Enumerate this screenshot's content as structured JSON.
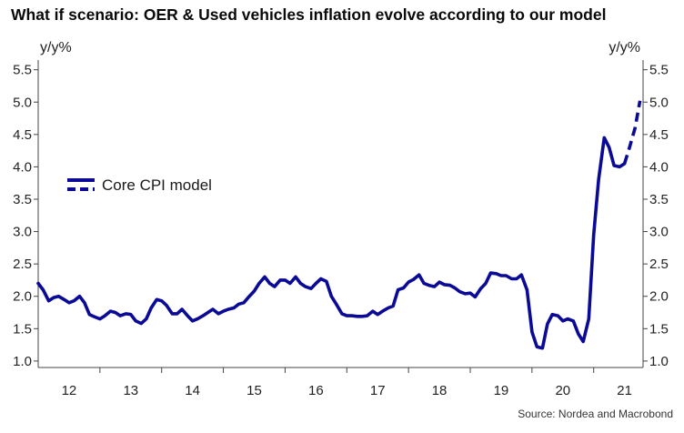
{
  "chart_data": {
    "type": "line",
    "title": "What if scenario: OER & Used vehicles inflation evolve according to our model",
    "ylabel_left": "y/y%",
    "ylabel_right": "y/y%",
    "ylim": [
      0.9,
      5.65
    ],
    "yticks": [
      1.0,
      1.5,
      2.0,
      2.5,
      3.0,
      3.5,
      4.0,
      4.5,
      5.0,
      5.5
    ],
    "ytick_labels": [
      "1.0",
      "1.5",
      "2.0",
      "2.5",
      "3.0",
      "3.5",
      "4.0",
      "4.5",
      "5.0",
      "5.5"
    ],
    "xlim": [
      2012.0,
      2021.8
    ],
    "year_labels": [
      "12",
      "13",
      "14",
      "15",
      "16",
      "17",
      "18",
      "19",
      "20",
      "21"
    ],
    "grid": false,
    "legend_position": "left",
    "source": "Source: Nordea and Macrobond",
    "series": [
      {
        "name": "Core CPI model",
        "color": "#0a0a96",
        "style": "solid",
        "x": [
          2012.0,
          2012.08,
          2012.17,
          2012.25,
          2012.33,
          2012.42,
          2012.5,
          2012.58,
          2012.67,
          2012.75,
          2012.83,
          2012.92,
          2013.0,
          2013.08,
          2013.17,
          2013.25,
          2013.33,
          2013.42,
          2013.5,
          2013.58,
          2013.67,
          2013.75,
          2013.83,
          2013.92,
          2014.0,
          2014.08,
          2014.17,
          2014.25,
          2014.33,
          2014.42,
          2014.5,
          2014.58,
          2014.67,
          2014.75,
          2014.83,
          2014.92,
          2015.0,
          2015.08,
          2015.17,
          2015.25,
          2015.33,
          2015.42,
          2015.5,
          2015.58,
          2015.67,
          2015.75,
          2015.83,
          2015.92,
          2016.0,
          2016.08,
          2016.17,
          2016.25,
          2016.33,
          2016.42,
          2016.5,
          2016.58,
          2016.67,
          2016.75,
          2016.83,
          2016.92,
          2017.0,
          2017.08,
          2017.17,
          2017.25,
          2017.33,
          2017.42,
          2017.5,
          2017.58,
          2017.67,
          2017.75,
          2017.83,
          2017.92,
          2018.0,
          2018.08,
          2018.17,
          2018.25,
          2018.33,
          2018.42,
          2018.5,
          2018.58,
          2018.67,
          2018.75,
          2018.83,
          2018.92,
          2019.0,
          2019.08,
          2019.17,
          2019.25,
          2019.33,
          2019.42,
          2019.5,
          2019.58,
          2019.67,
          2019.75,
          2019.83,
          2019.92,
          2020.0,
          2020.08,
          2020.17,
          2020.25,
          2020.33,
          2020.42,
          2020.5,
          2020.58,
          2020.67,
          2020.75,
          2020.83,
          2020.92,
          2021.0,
          2021.08,
          2021.17,
          2021.25,
          2021.33,
          2021.42,
          2021.5
        ],
        "y": [
          2.2,
          2.1,
          1.93,
          1.98,
          2.0,
          1.95,
          1.9,
          1.93,
          2.0,
          1.9,
          1.72,
          1.68,
          1.65,
          1.7,
          1.77,
          1.75,
          1.7,
          1.73,
          1.72,
          1.62,
          1.58,
          1.65,
          1.82,
          1.95,
          1.93,
          1.86,
          1.73,
          1.73,
          1.8,
          1.7,
          1.62,
          1.65,
          1.7,
          1.75,
          1.8,
          1.73,
          1.77,
          1.8,
          1.82,
          1.88,
          1.9,
          2.0,
          2.08,
          2.2,
          2.3,
          2.2,
          2.15,
          2.25,
          2.25,
          2.2,
          2.3,
          2.2,
          2.15,
          2.12,
          2.2,
          2.27,
          2.23,
          2.0,
          1.88,
          1.73,
          1.7,
          1.7,
          1.69,
          1.69,
          1.7,
          1.77,
          1.72,
          1.77,
          1.82,
          1.85,
          2.1,
          2.13,
          2.22,
          2.26,
          2.33,
          2.2,
          2.17,
          2.15,
          2.22,
          2.18,
          2.17,
          2.13,
          2.07,
          2.04,
          2.05,
          1.99,
          2.12,
          2.2,
          2.36,
          2.35,
          2.32,
          2.32,
          2.27,
          2.27,
          2.33,
          2.1,
          1.45,
          1.22,
          1.2,
          1.57,
          1.72,
          1.7,
          1.62,
          1.65,
          1.62,
          1.42,
          1.3,
          1.65,
          2.95,
          3.8,
          4.45,
          4.3,
          4.02,
          4.0,
          4.05
        ]
      },
      {
        "name": "",
        "color": "#0a0a96",
        "style": "dashed",
        "x": [
          2021.5,
          2021.58,
          2021.67,
          2021.75
        ],
        "y": [
          4.05,
          4.3,
          4.6,
          5.02
        ]
      }
    ]
  }
}
